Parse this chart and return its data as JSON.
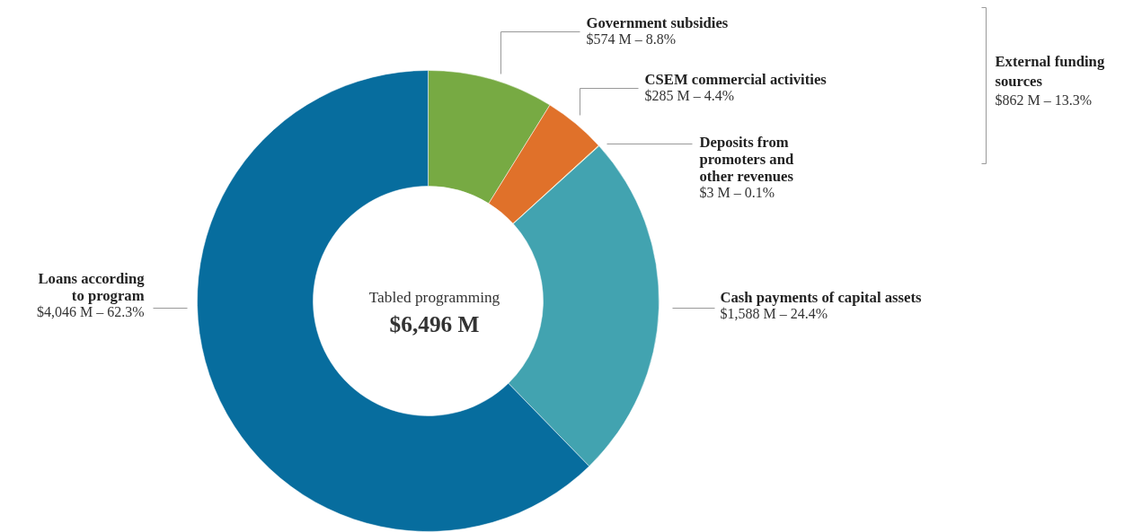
{
  "chart_data": {
    "type": "donut",
    "categories": [
      "Government subsidies",
      "CSEM commercial activities",
      "Deposits from promoters and other revenues",
      "Cash payments of capital assets",
      "Loans according to program"
    ],
    "values": [
      574,
      285,
      3,
      1588,
      4046
    ],
    "colors": [
      "#77aa43",
      "#e0712a",
      "#e8c440",
      "#42a3b0",
      "#076d9e"
    ],
    "value_labels": [
      "$574 M – 8.8%",
      "$285 M – 4.4%",
      "$3 M – 0.1%",
      "$1,588 M – 24.4%",
      "$4,046 M – 62.3%"
    ],
    "annotations": [
      "Tabled programming",
      "$6,496 M",
      "External funding sources",
      "$862 M – 13.3%"
    ]
  }
}
